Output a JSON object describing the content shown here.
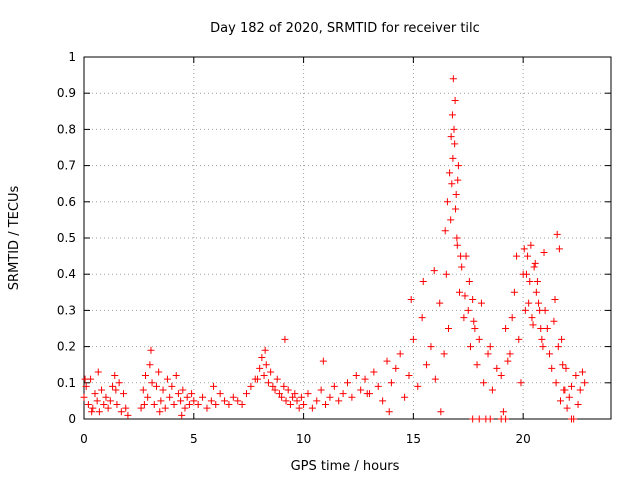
{
  "chart_data": {
    "type": "scatter",
    "title": "Day 182 of 2020, SRMTID for receiver tilc",
    "xlabel": "GPS time / hours",
    "ylabel": "SRMTID / TECUs",
    "xlim": [
      0,
      24
    ],
    "ylim": [
      0,
      1
    ],
    "xticks": [
      0,
      5,
      10,
      15,
      20
    ],
    "yticks": [
      0,
      0.1,
      0.2,
      0.3,
      0.4,
      0.5,
      0.6,
      0.7,
      0.8,
      0.9,
      1
    ],
    "xtick_labels": [
      "0",
      "5",
      "10",
      "15",
      "20"
    ],
    "ytick_labels": [
      "0",
      "0.1",
      "0.2",
      "0.3",
      "0.4",
      "0.5",
      "0.6",
      "0.7",
      "0.8",
      "0.9",
      "1"
    ],
    "grid": true,
    "marker": "+",
    "marker_color": "#ff0000",
    "series": [
      {
        "name": "SRMTID",
        "x": [
          0.0,
          0.1,
          0.2,
          0.3,
          0.4,
          0.5,
          0.6,
          0.7,
          0.8,
          0.9,
          1.0,
          1.1,
          1.2,
          1.3,
          1.4,
          1.5,
          1.6,
          1.7,
          1.8,
          1.9,
          2.0,
          2.6,
          2.7,
          2.8,
          2.9,
          3.0,
          3.1,
          3.2,
          3.3,
          3.4,
          3.5,
          3.6,
          3.7,
          3.8,
          3.9,
          4.0,
          4.1,
          4.2,
          4.3,
          4.4,
          4.5,
          4.6,
          4.7,
          4.8,
          4.9,
          5.0,
          5.2,
          5.4,
          5.6,
          5.8,
          6.0,
          6.2,
          6.4,
          6.6,
          6.8,
          7.0,
          7.2,
          7.4,
          7.6,
          7.8,
          8.0,
          8.1,
          8.2,
          8.3,
          8.4,
          8.5,
          8.6,
          8.7,
          8.8,
          8.9,
          9.0,
          9.1,
          9.2,
          9.3,
          9.4,
          9.5,
          9.6,
          9.7,
          9.8,
          9.9,
          10.0,
          10.2,
          10.4,
          10.6,
          10.8,
          11.0,
          11.2,
          11.4,
          11.6,
          11.8,
          12.0,
          12.2,
          12.4,
          12.6,
          12.8,
          13.0,
          13.2,
          13.4,
          13.6,
          13.8,
          14.0,
          14.2,
          14.4,
          14.6,
          14.8,
          15.0,
          15.2,
          15.4,
          15.6,
          15.8,
          16.0,
          16.2,
          16.4,
          16.5,
          16.6,
          16.7,
          16.75,
          16.8,
          16.85,
          16.9,
          16.95,
          17.0,
          17.05,
          17.1,
          17.2,
          17.3,
          17.4,
          17.5,
          17.6,
          17.7,
          17.8,
          17.9,
          18.0,
          18.2,
          18.4,
          18.6,
          18.8,
          19.0,
          19.2,
          19.4,
          19.6,
          19.8,
          20.0,
          20.1,
          20.2,
          20.3,
          20.4,
          20.5,
          20.6,
          20.7,
          20.8,
          20.9,
          21.0,
          21.2,
          21.4,
          21.5,
          21.6,
          21.7,
          21.8,
          21.9,
          22.0,
          22.2,
          22.4,
          22.6,
          22.8,
          0.05,
          0.35,
          0.65,
          1.45,
          2.75,
          3.05,
          3.45,
          4.45,
          5.9,
          7.9,
          8.25,
          9.15,
          10.9,
          12.9,
          13.9,
          14.9,
          15.45,
          15.95,
          16.25,
          16.45,
          16.55,
          16.65,
          16.72,
          16.78,
          16.82,
          16.88,
          16.92,
          16.98,
          17.02,
          17.15,
          17.35,
          17.55,
          17.75,
          18.1,
          18.5,
          19.1,
          19.3,
          19.5,
          19.7,
          19.9,
          20.05,
          20.15,
          20.25,
          20.35,
          20.45,
          20.55,
          20.65,
          20.75,
          20.85,
          20.95,
          21.1,
          21.3,
          21.45,
          21.55,
          21.65,
          21.75,
          21.85,
          21.95,
          22.1,
          22.5,
          22.7,
          17.7,
          18.0,
          18.3,
          18.5,
          19.0,
          19.2,
          22.2,
          22.3
        ],
        "y": [
          0.06,
          0.09,
          0.04,
          0.11,
          0.03,
          0.07,
          0.05,
          0.02,
          0.08,
          0.04,
          0.06,
          0.03,
          0.05,
          0.09,
          0.12,
          0.04,
          0.1,
          0.02,
          0.07,
          0.03,
          0.01,
          0.03,
          0.08,
          0.12,
          0.06,
          0.15,
          0.1,
          0.04,
          0.09,
          0.13,
          0.05,
          0.08,
          0.03,
          0.11,
          0.06,
          0.09,
          0.04,
          0.12,
          0.07,
          0.05,
          0.08,
          0.03,
          0.06,
          0.04,
          0.07,
          0.05,
          0.04,
          0.06,
          0.03,
          0.05,
          0.04,
          0.07,
          0.05,
          0.04,
          0.06,
          0.05,
          0.04,
          0.07,
          0.09,
          0.11,
          0.14,
          0.17,
          0.12,
          0.15,
          0.1,
          0.13,
          0.09,
          0.08,
          0.11,
          0.07,
          0.06,
          0.09,
          0.05,
          0.08,
          0.04,
          0.06,
          0.07,
          0.05,
          0.03,
          0.06,
          0.04,
          0.07,
          0.03,
          0.05,
          0.08,
          0.04,
          0.06,
          0.09,
          0.05,
          0.07,
          0.1,
          0.06,
          0.12,
          0.08,
          0.11,
          0.07,
          0.13,
          0.09,
          0.05,
          0.16,
          0.1,
          0.14,
          0.18,
          0.06,
          0.12,
          0.22,
          0.09,
          0.28,
          0.15,
          0.2,
          0.11,
          0.32,
          0.18,
          0.4,
          0.25,
          0.55,
          0.65,
          0.72,
          0.8,
          0.88,
          0.62,
          0.48,
          0.7,
          0.35,
          0.42,
          0.28,
          0.45,
          0.3,
          0.2,
          0.33,
          0.25,
          0.15,
          0.22,
          0.1,
          0.18,
          0.08,
          0.14,
          0.12,
          0.25,
          0.18,
          0.35,
          0.22,
          0.4,
          0.3,
          0.45,
          0.38,
          0.28,
          0.42,
          0.35,
          0.32,
          0.25,
          0.2,
          0.3,
          0.18,
          0.27,
          0.1,
          0.2,
          0.05,
          0.15,
          0.08,
          0.03,
          0.09,
          0.12,
          0.08,
          0.1,
          0.11,
          0.02,
          0.13,
          0.08,
          0.04,
          0.19,
          0.02,
          0.01,
          0.09,
          0.11,
          0.19,
          0.22,
          0.16,
          0.07,
          0.02,
          0.33,
          0.38,
          0.41,
          0.02,
          0.52,
          0.6,
          0.68,
          0.78,
          0.84,
          0.94,
          0.76,
          0.58,
          0.5,
          0.66,
          0.45,
          0.34,
          0.38,
          0.27,
          0.32,
          0.2,
          0.02,
          0.16,
          0.28,
          0.45,
          0.1,
          0.47,
          0.4,
          0.32,
          0.48,
          0.26,
          0.43,
          0.38,
          0.3,
          0.22,
          0.46,
          0.25,
          0.14,
          0.33,
          0.51,
          0.47,
          0.22,
          0.08,
          0.14,
          0.06,
          0.04,
          0.13,
          0.0,
          0.0,
          0.0,
          0.0,
          0.0,
          0.0,
          0.0,
          0.0
        ]
      }
    ]
  }
}
